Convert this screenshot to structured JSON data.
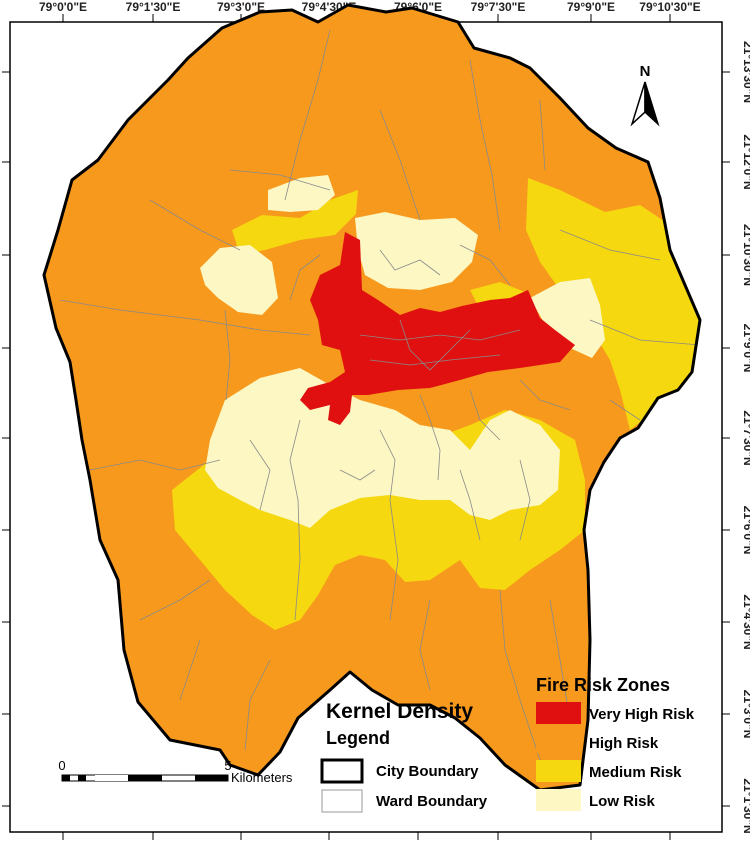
{
  "map": {
    "top_ticks": [
      "79°0'0\"E",
      "79°1'30\"E",
      "79°3'0\"E",
      "79°4'30\"E",
      "79°6'0\"E",
      "79°7'30\"E",
      "79°9'0\"E",
      "79°10'30\"E"
    ],
    "right_ticks": [
      "21°13'30\"N",
      "21°12'0\"N",
      "21°10'30\"N",
      "21°9'0\"N",
      "21°7'30\"N",
      "21°6'0\"N",
      "21°4'30\"N",
      "21°3'0\"N",
      "21°1'30\"N"
    ],
    "north_label": "N",
    "colors": {
      "very_high": "#e01010",
      "high": "#f7991c",
      "medium": "#f5d80f",
      "low": "#fcf7c3",
      "ward_line": "#8a8a8a",
      "city_line": "#000000"
    }
  },
  "kernel_legend": {
    "title_line1": "Kernel Density",
    "title_line2": "Legend",
    "city_boundary": "City Boundary",
    "ward_boundary": "Ward Boundary"
  },
  "fire_legend": {
    "title": "Fire Risk Zones",
    "items": [
      {
        "label": "Very High Risk",
        "color": "#e01010"
      },
      {
        "label": "High Risk",
        "color": "#f7991c"
      },
      {
        "label": "Medium Risk",
        "color": "#f5d80f"
      },
      {
        "label": "Low Risk",
        "color": "#fcf7c3"
      }
    ]
  },
  "scale_bar": {
    "start": "0",
    "end": "5",
    "unit": "Kilometers"
  }
}
